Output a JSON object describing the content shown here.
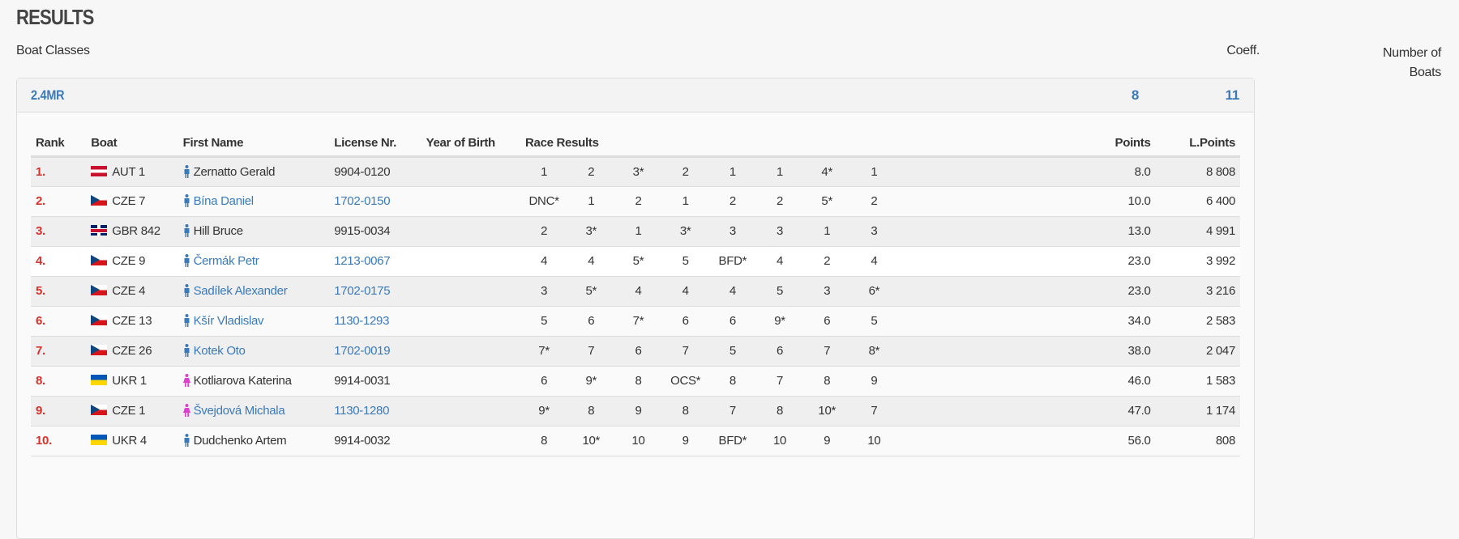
{
  "title": "RESULTS",
  "subtitle": "Boat Classes",
  "coeff_label": "Coeff.",
  "boats_label": "Number of Boats",
  "class": {
    "name": "2.4MR",
    "coeff": "8",
    "boats": "11"
  },
  "columns": {
    "rank": "Rank",
    "boat": "Boat",
    "name": "First Name",
    "license": "License Nr.",
    "yob": "Year of Birth",
    "races": "Race Results",
    "points": "Points",
    "lpoints": "L.Points"
  },
  "colors": {
    "accent": "#3a7ab8",
    "rank": "#d9302a",
    "male": "#3a7ab8",
    "female": "#e040d0"
  },
  "rows": [
    {
      "rank": "1.",
      "flag": "aut",
      "boat": "AUT 1",
      "gender": "male",
      "name": "Zernatto Gerald",
      "linked": false,
      "license": "9904-0120",
      "yob": "",
      "races": [
        "1",
        "2",
        "3*",
        "2",
        "1",
        "1",
        "4*",
        "1"
      ],
      "points": "8.0",
      "lpoints": "8 808"
    },
    {
      "rank": "2.",
      "flag": "cze",
      "boat": "CZE 7",
      "gender": "male",
      "name": "Bína Daniel",
      "linked": true,
      "license": "1702-0150",
      "yob": "",
      "races": [
        "DNC*",
        "1",
        "2",
        "1",
        "2",
        "2",
        "5*",
        "2"
      ],
      "points": "10.0",
      "lpoints": "6 400"
    },
    {
      "rank": "3.",
      "flag": "gbr",
      "boat": "GBR 842",
      "gender": "male",
      "name": "Hill Bruce",
      "linked": false,
      "license": "9915-0034",
      "yob": "",
      "races": [
        "2",
        "3*",
        "1",
        "3*",
        "3",
        "3",
        "1",
        "3"
      ],
      "points": "13.0",
      "lpoints": "4 991"
    },
    {
      "rank": "4.",
      "flag": "cze",
      "boat": "CZE 9",
      "gender": "male",
      "name": "Čermák Petr",
      "linked": true,
      "license": "1213-0067",
      "yob": "",
      "races": [
        "4",
        "4",
        "5*",
        "5",
        "BFD*",
        "4",
        "2",
        "4"
      ],
      "points": "23.0",
      "lpoints": "3 992"
    },
    {
      "rank": "5.",
      "flag": "cze",
      "boat": "CZE 4",
      "gender": "male",
      "name": "Sadílek Alexander",
      "linked": true,
      "license": "1702-0175",
      "yob": "",
      "races": [
        "3",
        "5*",
        "4",
        "4",
        "4",
        "5",
        "3",
        "6*"
      ],
      "points": "23.0",
      "lpoints": "3 216"
    },
    {
      "rank": "6.",
      "flag": "cze",
      "boat": "CZE 13",
      "gender": "male",
      "name": "Kšír Vladislav",
      "linked": true,
      "license": "1130-1293",
      "yob": "",
      "races": [
        "5",
        "6",
        "7*",
        "6",
        "6",
        "9*",
        "6",
        "5"
      ],
      "points": "34.0",
      "lpoints": "2 583"
    },
    {
      "rank": "7.",
      "flag": "cze",
      "boat": "CZE 26",
      "gender": "male",
      "name": "Kotek Oto",
      "linked": true,
      "license": "1702-0019",
      "yob": "",
      "races": [
        "7*",
        "7",
        "6",
        "7",
        "5",
        "6",
        "7",
        "8*"
      ],
      "points": "38.0",
      "lpoints": "2 047"
    },
    {
      "rank": "8.",
      "flag": "ukr",
      "boat": "UKR 1",
      "gender": "female",
      "name": "Kotliarova Katerina",
      "linked": false,
      "license": "9914-0031",
      "yob": "",
      "races": [
        "6",
        "9*",
        "8",
        "OCS*",
        "8",
        "7",
        "8",
        "9"
      ],
      "points": "46.0",
      "lpoints": "1 583"
    },
    {
      "rank": "9.",
      "flag": "cze",
      "boat": "CZE 1",
      "gender": "female",
      "name": "Švejdová Michala",
      "linked": true,
      "license": "1130-1280",
      "yob": "",
      "races": [
        "9*",
        "8",
        "9",
        "8",
        "7",
        "8",
        "10*",
        "7"
      ],
      "points": "47.0",
      "lpoints": "1 174"
    },
    {
      "rank": "10.",
      "flag": "ukr",
      "boat": "UKR 4",
      "gender": "male",
      "name": "Dudchenko Artem",
      "linked": false,
      "license": "9914-0032",
      "yob": "",
      "races": [
        "8",
        "10*",
        "10",
        "9",
        "BFD*",
        "10",
        "9",
        "10"
      ],
      "points": "56.0",
      "lpoints": "808"
    }
  ]
}
